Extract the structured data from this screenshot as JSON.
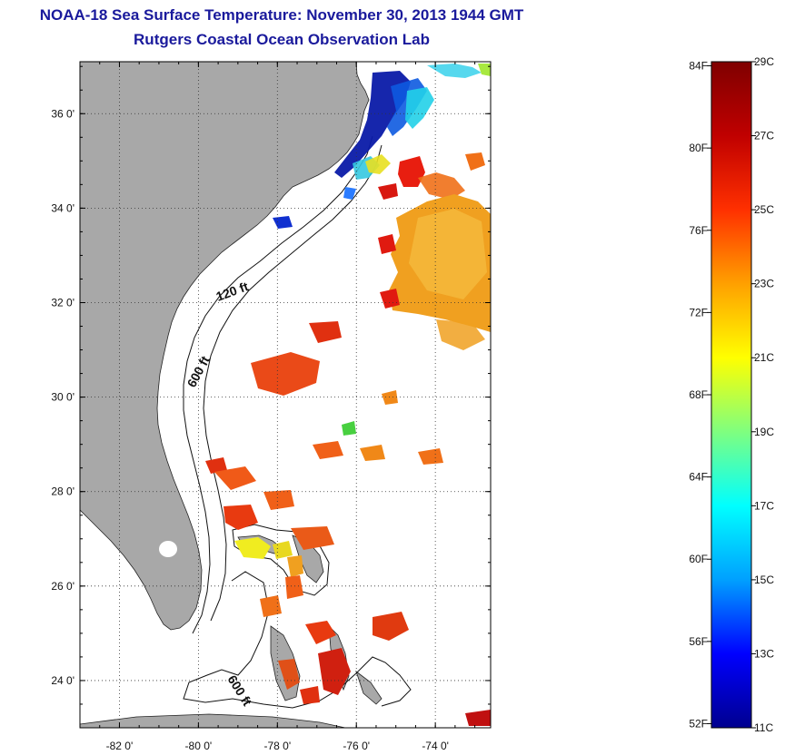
{
  "header": {
    "title": "NOAA-18 Sea Surface Temperature:  November 30, 2013 1944 GMT",
    "subtitle": "Rutgers Coastal Ocean Observation Lab"
  },
  "map": {
    "lon_range": [
      -83.0,
      -72.6
    ],
    "lat_range": [
      23.0,
      37.1
    ],
    "lat_ticks": [
      {
        "value": 24,
        "label": "24 0'"
      },
      {
        "value": 26,
        "label": "26 0'"
      },
      {
        "value": 28,
        "label": "28 0'"
      },
      {
        "value": 30,
        "label": "30 0'"
      },
      {
        "value": 32,
        "label": "32 0'"
      },
      {
        "value": 34,
        "label": "34 0'"
      },
      {
        "value": 36,
        "label": "36 0'"
      }
    ],
    "lon_ticks": [
      {
        "value": -82,
        "label": "-82 0'"
      },
      {
        "value": -80,
        "label": "-80 0'"
      },
      {
        "value": -78,
        "label": "-78 0'"
      },
      {
        "value": -76,
        "label": "-76 0'"
      },
      {
        "value": -74,
        "label": "-74 0'"
      }
    ],
    "grid": "dotted",
    "land_color": "#a8a8a8",
    "contour_labels": [
      {
        "text": "120 ft"
      },
      {
        "text": "600 ft"
      },
      {
        "text": "600 ft"
      }
    ]
  },
  "colorbar": {
    "min_c": 11,
    "max_c": 29,
    "colors": [
      "#00008f",
      "#0000ff",
      "#00a0ff",
      "#00ffff",
      "#7fff7f",
      "#ffff00",
      "#ffa000",
      "#ff3000",
      "#c00000",
      "#7f0000"
    ],
    "celsius_labels": [
      {
        "value": 29,
        "label": "29C"
      },
      {
        "value": 27,
        "label": "27C"
      },
      {
        "value": 25,
        "label": "25C"
      },
      {
        "value": 23,
        "label": "23C"
      },
      {
        "value": 21,
        "label": "21C"
      },
      {
        "value": 19,
        "label": "19C"
      },
      {
        "value": 17,
        "label": "17C"
      },
      {
        "value": 15,
        "label": "15C"
      },
      {
        "value": 13,
        "label": "13C"
      },
      {
        "value": 11,
        "label": "11C"
      }
    ],
    "fahrenheit_labels": [
      {
        "value": 84,
        "label": "84F"
      },
      {
        "value": 80,
        "label": "80F"
      },
      {
        "value": 76,
        "label": "76F"
      },
      {
        "value": 72,
        "label": "72F"
      },
      {
        "value": 68,
        "label": "68F"
      },
      {
        "value": 64,
        "label": "64F"
      },
      {
        "value": 60,
        "label": "60F"
      },
      {
        "value": 56,
        "label": "56F"
      },
      {
        "value": 52,
        "label": "52F"
      }
    ]
  }
}
